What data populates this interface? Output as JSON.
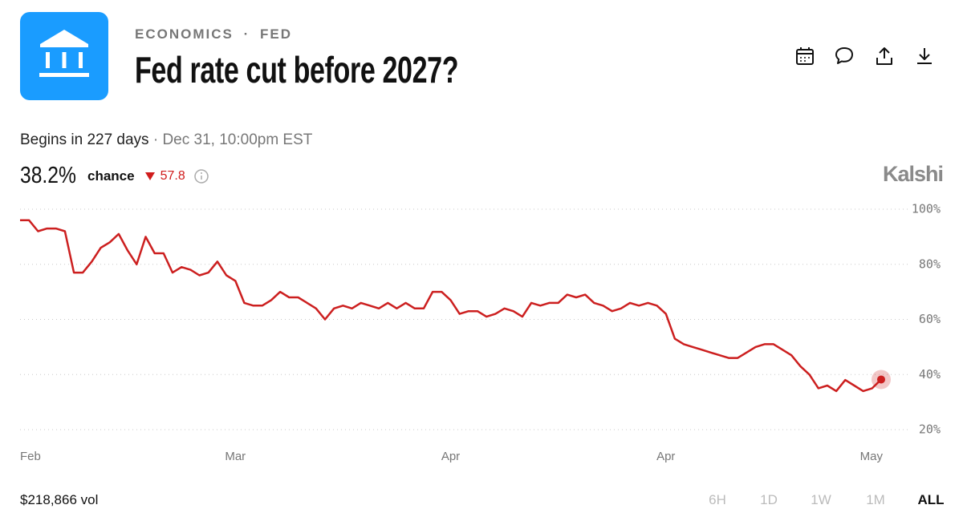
{
  "header": {
    "breadcrumb": [
      "ECONOMICS",
      "FED"
    ],
    "separator": "·",
    "title": "Fed rate cut before 2027?"
  },
  "status": {
    "begins": "Begins in 227 days",
    "separator": "·",
    "date": "Dec 31, 10:00pm EST"
  },
  "price": {
    "chance_value": "38.2%",
    "chance_label": "chance",
    "change": "57.8"
  },
  "brand": "Kalshi",
  "chart_data": {
    "type": "line",
    "color": "#cc1f1f",
    "values": [
      96,
      96,
      92,
      93,
      93,
      92,
      77,
      77,
      81,
      86,
      88,
      91,
      85,
      80,
      90,
      84,
      84,
      77,
      79,
      78,
      76,
      77,
      81,
      76,
      74,
      66,
      65,
      65,
      67,
      70,
      68,
      68,
      66,
      64,
      60,
      64,
      65,
      64,
      66,
      65,
      64,
      66,
      64,
      66,
      64,
      64,
      70,
      70,
      67,
      62,
      63,
      63,
      61,
      62,
      64,
      63,
      61,
      66,
      65,
      66,
      66,
      69,
      68,
      69,
      66,
      65,
      63,
      64,
      66,
      65,
      66,
      65,
      62,
      53,
      51,
      50,
      49,
      48,
      47,
      46,
      46,
      48,
      50,
      51,
      51,
      49,
      47,
      43,
      40,
      35,
      36,
      34,
      38,
      36,
      34,
      35,
      38.2
    ],
    "categories": [
      "Feb",
      null,
      null,
      null,
      null,
      null,
      null,
      null,
      null,
      null,
      null,
      null,
      null,
      null,
      null,
      null,
      null,
      null,
      null,
      null,
      null,
      null,
      null,
      null,
      "Mar",
      null,
      null,
      null,
      null,
      null,
      null,
      null,
      null,
      null,
      null,
      null,
      null,
      null,
      null,
      null,
      null,
      null,
      null,
      null,
      null,
      null,
      null,
      null,
      "Apr",
      null,
      null,
      null,
      null,
      null,
      null,
      null,
      null,
      null,
      null,
      null,
      null,
      null,
      null,
      null,
      null,
      null,
      null,
      null,
      null,
      null,
      null,
      null,
      "Apr",
      null,
      null,
      null,
      null,
      null,
      null,
      null,
      null,
      null,
      null,
      null,
      null,
      null,
      null,
      null,
      null,
      null,
      null,
      null,
      null,
      null,
      null,
      null,
      "May"
    ],
    "ylim": [
      20,
      100
    ],
    "yticks": [
      {
        "value": 20,
        "label": "20%"
      },
      {
        "value": 40,
        "label": "40%"
      },
      {
        "value": 60,
        "label": "60%"
      },
      {
        "value": 80,
        "label": "80%"
      },
      {
        "value": 100,
        "label": "100%"
      }
    ],
    "grid": true
  },
  "footer": {
    "volume": "$218,866 vol",
    "ranges": [
      "6H",
      "1D",
      "1W",
      "1M",
      "ALL"
    ],
    "selected": "ALL"
  }
}
